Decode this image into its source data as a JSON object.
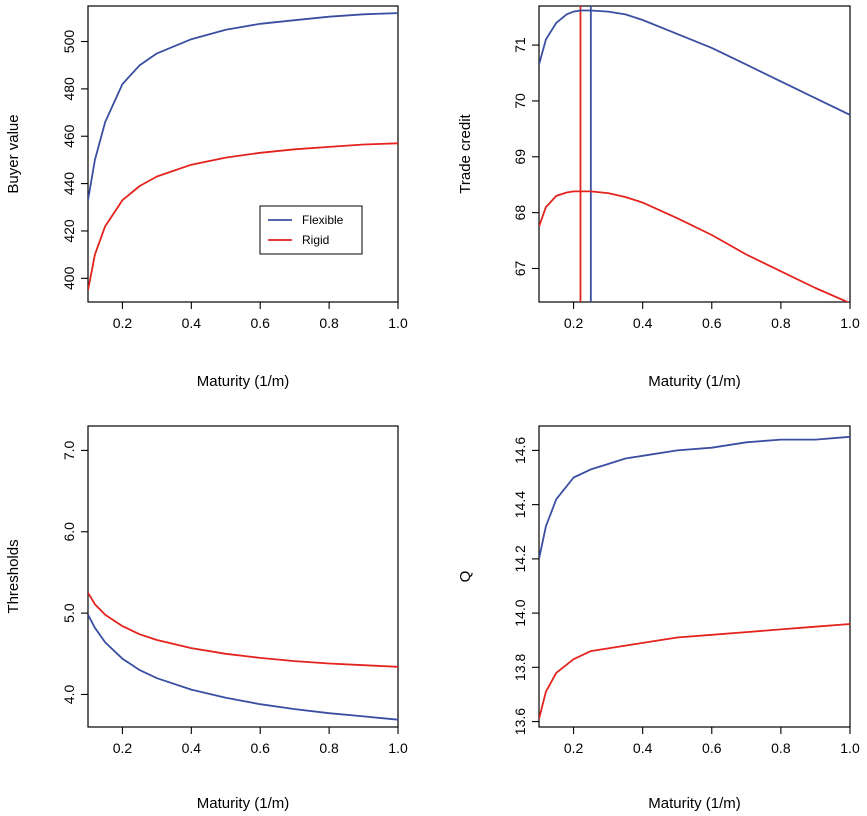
{
  "colors": {
    "flexible": "#3a4fa2",
    "rigid": "#e3231e"
  },
  "legend": {
    "items": [
      "Flexible",
      "Rigid"
    ]
  },
  "chart_data": [
    {
      "type": "line",
      "xlabel": "Maturity (1/m)",
      "ylabel": "Buyer value",
      "xlim": [
        0.1,
        1.0
      ],
      "ylim": [
        390,
        515
      ],
      "xticks": [
        0.2,
        0.4,
        0.6,
        0.8,
        1.0
      ],
      "xtick_labels": [
        "0.2",
        "0.4",
        "0.6",
        "0.8",
        "1.0"
      ],
      "yticks": [
        400,
        420,
        440,
        460,
        480,
        500
      ],
      "ytick_labels": [
        "400",
        "420",
        "440",
        "460",
        "480",
        "500"
      ],
      "legend_position": "center-right",
      "series": [
        {
          "name": "Flexible",
          "color": "flexible",
          "x": [
            0.1,
            0.12,
            0.15,
            0.2,
            0.25,
            0.3,
            0.4,
            0.5,
            0.6,
            0.7,
            0.8,
            0.9,
            1.0
          ],
          "y": [
            433,
            450,
            466,
            482,
            490,
            495,
            501,
            505,
            507.5,
            509,
            510.5,
            511.5,
            512
          ]
        },
        {
          "name": "Rigid",
          "color": "rigid",
          "x": [
            0.1,
            0.12,
            0.15,
            0.2,
            0.25,
            0.3,
            0.4,
            0.5,
            0.6,
            0.7,
            0.8,
            0.9,
            1.0
          ],
          "y": [
            395,
            410,
            422,
            433,
            439,
            443,
            448,
            451,
            453,
            454.5,
            455.5,
            456.5,
            457
          ]
        }
      ]
    },
    {
      "type": "line",
      "xlabel": "Maturity (1/m)",
      "ylabel": "Trade credit",
      "xlim": [
        0.1,
        1.0
      ],
      "ylim": [
        66.4,
        71.7
      ],
      "xticks": [
        0.2,
        0.4,
        0.6,
        0.8,
        1.0
      ],
      "xtick_labels": [
        "0.2",
        "0.4",
        "0.6",
        "0.8",
        "1.0"
      ],
      "yticks": [
        67,
        68,
        69,
        70,
        71
      ],
      "ytick_labels": [
        "67",
        "68",
        "69",
        "70",
        "71"
      ],
      "vlines": [
        {
          "x": 0.22,
          "color": "rigid"
        },
        {
          "x": 0.25,
          "color": "flexible"
        }
      ],
      "series": [
        {
          "name": "",
          "color": "flexible",
          "x": [
            0.1,
            0.12,
            0.15,
            0.18,
            0.2,
            0.22,
            0.25,
            0.3,
            0.35,
            0.4,
            0.5,
            0.6,
            0.7,
            0.8,
            0.9,
            1.0
          ],
          "y": [
            70.65,
            71.1,
            71.4,
            71.55,
            71.6,
            71.62,
            71.62,
            71.6,
            71.55,
            71.45,
            71.2,
            70.95,
            70.65,
            70.35,
            70.05,
            69.75
          ]
        },
        {
          "name": "",
          "color": "rigid",
          "x": [
            0.1,
            0.12,
            0.15,
            0.18,
            0.2,
            0.22,
            0.25,
            0.3,
            0.35,
            0.4,
            0.5,
            0.6,
            0.7,
            0.8,
            0.9,
            1.0
          ],
          "y": [
            67.75,
            68.1,
            68.3,
            68.36,
            68.38,
            68.38,
            68.38,
            68.35,
            68.28,
            68.18,
            67.9,
            67.6,
            67.25,
            66.95,
            66.65,
            66.38
          ]
        }
      ]
    },
    {
      "type": "line",
      "xlabel": "Maturity (1/m)",
      "ylabel": "Thresholds",
      "xlim": [
        0.1,
        1.0
      ],
      "ylim": [
        3.6,
        7.3
      ],
      "xticks": [
        0.2,
        0.4,
        0.6,
        0.8,
        1.0
      ],
      "xtick_labels": [
        "0.2",
        "0.4",
        "0.6",
        "0.8",
        "1.0"
      ],
      "yticks": [
        4.0,
        5.0,
        6.0,
        7.0
      ],
      "ytick_labels": [
        "4.0",
        "5.0",
        "6.0",
        "7.0"
      ],
      "series": [
        {
          "name": "",
          "color": "flexible",
          "x": [
            0.1,
            0.12,
            0.15,
            0.2,
            0.25,
            0.3,
            0.4,
            0.5,
            0.6,
            0.7,
            0.8,
            0.9,
            1.0
          ],
          "y": [
            4.98,
            4.82,
            4.64,
            4.44,
            4.3,
            4.2,
            4.06,
            3.96,
            3.88,
            3.82,
            3.77,
            3.73,
            3.69
          ]
        },
        {
          "name": "",
          "color": "rigid",
          "x": [
            0.1,
            0.12,
            0.15,
            0.2,
            0.25,
            0.3,
            0.4,
            0.5,
            0.6,
            0.7,
            0.8,
            0.9,
            1.0
          ],
          "y": [
            5.25,
            5.11,
            4.98,
            4.84,
            4.74,
            4.67,
            4.57,
            4.5,
            4.45,
            4.41,
            4.38,
            4.36,
            4.34
          ]
        }
      ]
    },
    {
      "type": "line",
      "xlabel": "Maturity (1/m)",
      "ylabel": "Q",
      "xlim": [
        0.1,
        1.0
      ],
      "ylim": [
        13.58,
        14.69
      ],
      "xticks": [
        0.2,
        0.4,
        0.6,
        0.8,
        1.0
      ],
      "xtick_labels": [
        "0.2",
        "0.4",
        "0.6",
        "0.8",
        "1.0"
      ],
      "yticks": [
        13.6,
        13.8,
        14.0,
        14.2,
        14.4,
        14.6
      ],
      "ytick_labels": [
        "13.6",
        "13.8",
        "14.0",
        "14.2",
        "14.4",
        "14.6"
      ],
      "series": [
        {
          "name": "",
          "color": "flexible",
          "x": [
            0.1,
            0.12,
            0.15,
            0.2,
            0.25,
            0.3,
            0.35,
            0.4,
            0.5,
            0.6,
            0.7,
            0.8,
            0.9,
            1.0
          ],
          "y": [
            14.2,
            14.32,
            14.42,
            14.5,
            14.53,
            14.55,
            14.57,
            14.58,
            14.6,
            14.61,
            14.63,
            14.64,
            14.64,
            14.65
          ]
        },
        {
          "name": "",
          "color": "rigid",
          "x": [
            0.1,
            0.12,
            0.15,
            0.2,
            0.25,
            0.3,
            0.35,
            0.4,
            0.5,
            0.6,
            0.7,
            0.8,
            0.9,
            1.0
          ],
          "y": [
            13.61,
            13.71,
            13.78,
            13.83,
            13.86,
            13.87,
            13.88,
            13.89,
            13.91,
            13.92,
            13.93,
            13.94,
            13.95,
            13.96
          ]
        }
      ]
    }
  ]
}
